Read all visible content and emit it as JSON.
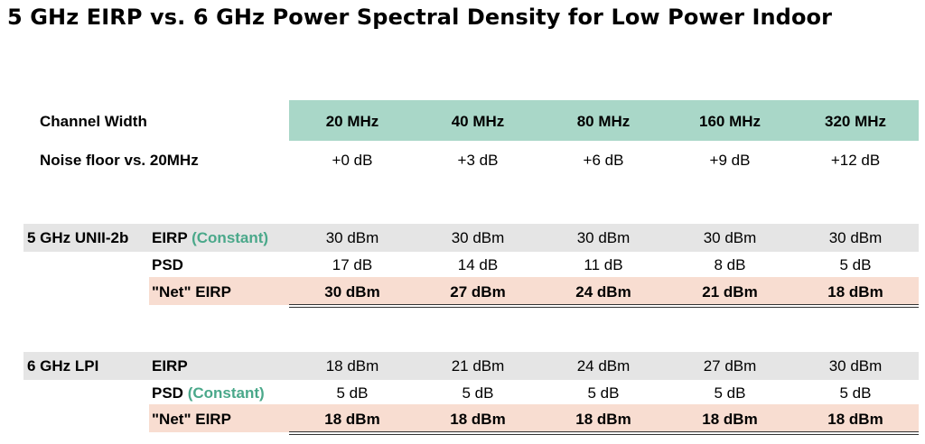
{
  "title": "5 GHz EIRP vs. 6 GHz Power Spectral Density for Low Power Indoor",
  "colors": {
    "header": "#a9d7c8",
    "grey_row": "#e5e5e5",
    "net_row": "#f8ddd1",
    "accent": "#4aa88a"
  },
  "header": {
    "label": "Channel Width",
    "widths": [
      "20 MHz",
      "40 MHz",
      "80 MHz",
      "160 MHz",
      "320 MHz"
    ]
  },
  "noise": {
    "label": "Noise floor vs. 20MHz",
    "values": [
      "+0 dB",
      "+3 dB",
      "+6 dB",
      "+9 dB",
      "+12 dB"
    ]
  },
  "unii": {
    "group_label": "5 GHz UNII-2b",
    "eirp_label": "EIRP",
    "eirp_note": "(Constant)",
    "eirp": [
      "30 dBm",
      "30 dBm",
      "30 dBm",
      "30 dBm",
      "30 dBm"
    ],
    "psd_label": "PSD",
    "psd": [
      "17 dB",
      "14 dB",
      "11 dB",
      "8 dB",
      "5 dB"
    ],
    "net_label": "\"Net\" EIRP",
    "net": [
      "30 dBm",
      "27 dBm",
      "24 dBm",
      "21 dBm",
      "18 dBm"
    ]
  },
  "lpi": {
    "group_label": "6 GHz LPI",
    "eirp_label": "EIRP",
    "eirp": [
      "18 dBm",
      "21 dBm",
      "24 dBm",
      "27 dBm",
      "30 dBm"
    ],
    "psd_label": "PSD",
    "psd_note": "(Constant)",
    "psd": [
      "5 dB",
      "5 dB",
      "5 dB",
      "5 dB",
      "5 dB"
    ],
    "net_label": "\"Net\" EIRP",
    "net": [
      "18 dBm",
      "18 dBm",
      "18 dBm",
      "18 dBm",
      "18 dBm"
    ]
  }
}
